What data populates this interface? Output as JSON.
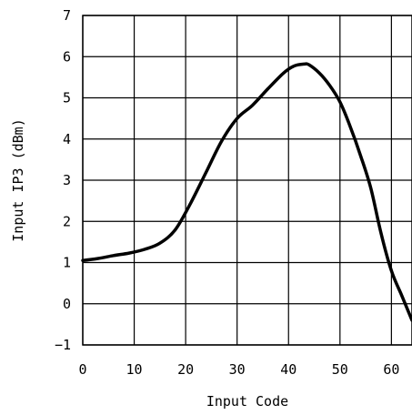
{
  "chart_data": {
    "type": "line",
    "title": "",
    "xlabel": "Input Code",
    "ylabel": "Input IP3 (dBm)",
    "xlim": [
      0,
      64
    ],
    "ylim": [
      -1,
      7
    ],
    "x_ticks": [
      0,
      10,
      20,
      30,
      40,
      50,
      60
    ],
    "y_ticks": [
      -1,
      0,
      1,
      2,
      3,
      4,
      5,
      6,
      7
    ],
    "x_tick_labels": [
      "0",
      "10",
      "20",
      "30",
      "40",
      "50",
      "60"
    ],
    "y_tick_labels": [
      "−1",
      "0",
      "1",
      "2",
      "3",
      "4",
      "5",
      "6",
      "7"
    ],
    "grid": true,
    "line_color": "#000000",
    "series": [
      {
        "x": [
          0,
          3,
          6,
          9,
          12,
          15,
          18,
          21,
          24,
          27,
          30,
          33,
          36,
          39,
          41,
          43,
          44,
          46,
          48,
          50,
          52,
          54,
          56,
          58,
          60,
          62,
          64
        ],
        "y": [
          1.05,
          1.1,
          1.17,
          1.23,
          1.32,
          1.47,
          1.8,
          2.45,
          3.2,
          3.95,
          4.5,
          4.82,
          5.22,
          5.6,
          5.77,
          5.82,
          5.8,
          5.6,
          5.3,
          4.9,
          4.3,
          3.6,
          2.8,
          1.7,
          0.8,
          0.2,
          -0.4
        ]
      }
    ]
  }
}
